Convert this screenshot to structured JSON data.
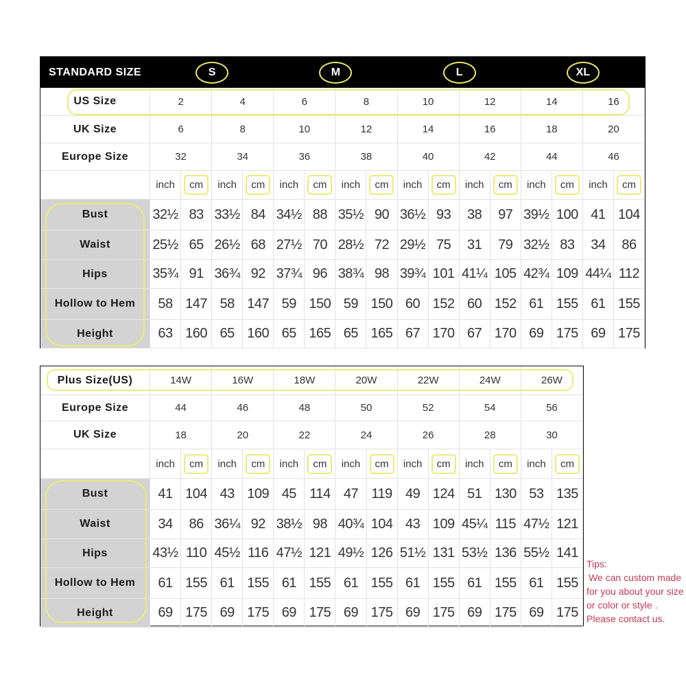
{
  "standard": {
    "title": "STANDARD SIZE",
    "groups": [
      "S",
      "M",
      "L",
      "XL"
    ],
    "size_rows": [
      {
        "label": "US Size",
        "values": [
          "2",
          "4",
          "6",
          "8",
          "10",
          "12",
          "14",
          "16"
        ]
      },
      {
        "label": "UK Size",
        "values": [
          "6",
          "8",
          "10",
          "12",
          "14",
          "16",
          "18",
          "20"
        ]
      },
      {
        "label": "Europe Size",
        "values": [
          "32",
          "34",
          "36",
          "38",
          "40",
          "42",
          "44",
          "46"
        ]
      }
    ],
    "units": [
      "inch",
      "cm"
    ],
    "measure_rows": [
      {
        "label": "Bust",
        "values": [
          "32½",
          "83",
          "33½",
          "84",
          "34½",
          "88",
          "35½",
          "90",
          "36½",
          "93",
          "38",
          "97",
          "39½",
          "100",
          "41",
          "104"
        ]
      },
      {
        "label": "Waist",
        "values": [
          "25½",
          "65",
          "26½",
          "68",
          "27½",
          "70",
          "28½",
          "72",
          "29½",
          "75",
          "31",
          "79",
          "32½",
          "83",
          "34",
          "86"
        ]
      },
      {
        "label": "Hips",
        "values": [
          "35¾",
          "91",
          "36¾",
          "92",
          "37¾",
          "96",
          "38¾",
          "98",
          "39¾",
          "101",
          "41¼",
          "105",
          "42¾",
          "109",
          "44¼",
          "112"
        ]
      },
      {
        "label": "Hollow to Hem",
        "values": [
          "58",
          "147",
          "58",
          "147",
          "59",
          "150",
          "59",
          "150",
          "60",
          "152",
          "60",
          "152",
          "61",
          "155",
          "61",
          "155"
        ]
      },
      {
        "label": "Height",
        "values": [
          "63",
          "160",
          "65",
          "160",
          "65",
          "165",
          "65",
          "165",
          "67",
          "170",
          "67",
          "170",
          "69",
          "175",
          "69",
          "175"
        ]
      }
    ]
  },
  "plus": {
    "size_rows": [
      {
        "label": "Plus Size(US)",
        "values": [
          "14W",
          "16W",
          "18W",
          "20W",
          "22W",
          "24W",
          "26W"
        ]
      },
      {
        "label": "Europe Size",
        "values": [
          "44",
          "46",
          "48",
          "50",
          "52",
          "54",
          "56"
        ]
      },
      {
        "label": "UK Size",
        "values": [
          "18",
          "20",
          "22",
          "24",
          "26",
          "28",
          "30"
        ]
      }
    ],
    "units": [
      "inch",
      "cm"
    ],
    "measure_rows": [
      {
        "label": "Bust",
        "values": [
          "41",
          "104",
          "43",
          "109",
          "45",
          "114",
          "47",
          "119",
          "49",
          "124",
          "51",
          "130",
          "53",
          "135"
        ]
      },
      {
        "label": "Waist",
        "values": [
          "34",
          "86",
          "36¼",
          "92",
          "38½",
          "98",
          "40¾",
          "104",
          "43",
          "109",
          "45¼",
          "115",
          "47½",
          "121"
        ]
      },
      {
        "label": "Hips",
        "values": [
          "43½",
          "110",
          "45½",
          "116",
          "47½",
          "121",
          "49½",
          "126",
          "51½",
          "131",
          "53½",
          "136",
          "55½",
          "141"
        ]
      },
      {
        "label": "Hollow to Hem",
        "values": [
          "61",
          "155",
          "61",
          "155",
          "61",
          "155",
          "61",
          "155",
          "61",
          "155",
          "61",
          "155",
          "61",
          "155"
        ]
      },
      {
        "label": "Height",
        "values": [
          "69",
          "175",
          "69",
          "175",
          "69",
          "175",
          "69",
          "175",
          "69",
          "175",
          "69",
          "175",
          "69",
          "175"
        ]
      }
    ]
  },
  "tips": {
    "heading": "Tips:",
    "lines": [
      "We can custom made",
      "for you about your size",
      "or color or style .",
      "Please contact us."
    ]
  },
  "colors": {
    "highlight": "#eceb7a",
    "header_bg": "#000000",
    "label_bg": "#d3d3d3",
    "tips_text": "#c23a55"
  }
}
